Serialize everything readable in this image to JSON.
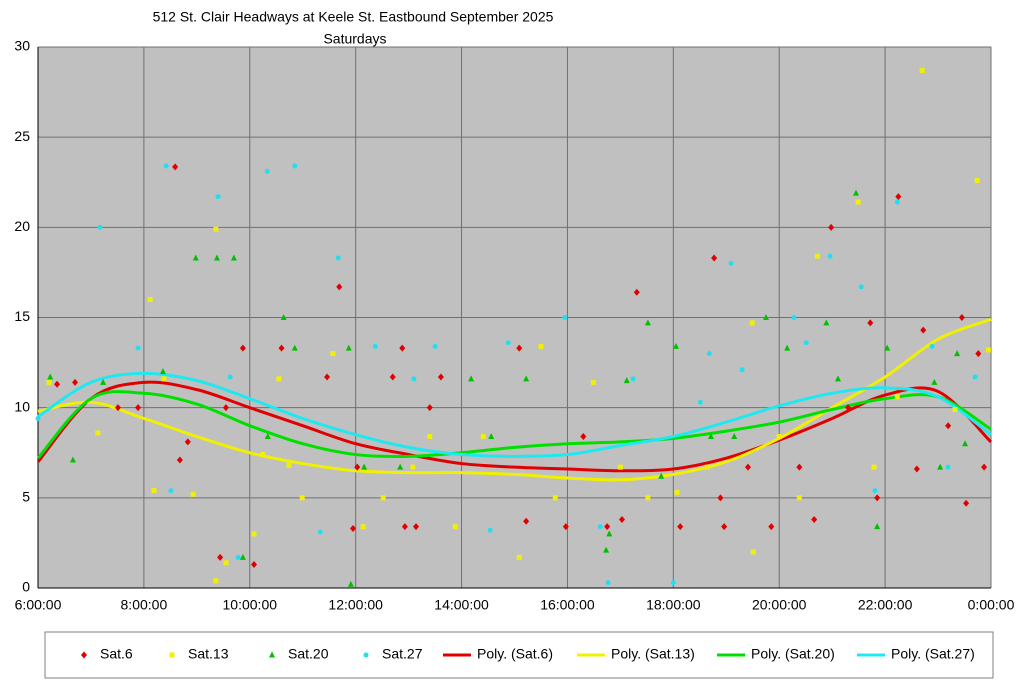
{
  "chart_data": {
    "type": "scatter",
    "title": "512 St. Clair Headways at Keele St. Eastbound September 2025",
    "subtitle": "Saturdays",
    "xlim": [
      6,
      24
    ],
    "xticks": [
      {
        "value": 6,
        "label": "6:00:00"
      },
      {
        "value": 8,
        "label": "8:00:00"
      },
      {
        "value": 10,
        "label": "10:00:00"
      },
      {
        "value": 12,
        "label": "12:00:00"
      },
      {
        "value": 14,
        "label": "14:00:00"
      },
      {
        "value": 16,
        "label": "16:00:00"
      },
      {
        "value": 18,
        "label": "18:00:00"
      },
      {
        "value": 20,
        "label": "20:00:00"
      },
      {
        "value": 22,
        "label": "22:00:00"
      },
      {
        "value": 24,
        "label": "0:00:00"
      }
    ],
    "ylim": [
      0,
      30
    ],
    "yticks": [
      0,
      5,
      10,
      15,
      20,
      25,
      30
    ],
    "grid": true,
    "legend_position": "bottom",
    "series": [
      {
        "name": "Sat.6",
        "color": "#e00000",
        "mode": "markers",
        "marker": "diamond",
        "x": [
          8.59,
          11.69,
          17.31,
          18.77,
          20.98,
          22.25,
          23.45,
          9.87,
          10.6,
          12.88,
          15.09,
          6.36,
          6.7,
          7.51,
          7.89,
          8.68,
          8.83,
          9.55,
          10.08,
          9.44,
          11.46,
          12.03,
          11.95,
          12.7,
          12.93,
          13.14,
          13.4,
          13.61,
          15.22,
          15.97,
          16.3,
          16.75,
          17.03,
          18.13,
          18.89,
          18.96,
          19.41,
          19.85,
          20.38,
          20.66,
          21.3,
          21.72,
          21.85,
          22.6,
          22.72,
          23.19,
          23.53,
          23.76,
          23.87
        ],
        "values": [
          23.35,
          16.7,
          16.4,
          18.3,
          20.0,
          21.7,
          15.0,
          13.3,
          13.3,
          13.3,
          13.3,
          11.3,
          11.4,
          10.0,
          10.0,
          7.1,
          8.1,
          10.0,
          1.3,
          1.7,
          11.7,
          6.7,
          3.3,
          11.7,
          3.4,
          3.4,
          10.0,
          11.7,
          3.7,
          3.4,
          8.4,
          3.4,
          3.8,
          3.4,
          5.0,
          3.4,
          6.7,
          3.4,
          6.7,
          3.8,
          10.0,
          14.7,
          5.0,
          6.6,
          14.3,
          9.0,
          4.7,
          13.0,
          6.7
        ]
      },
      {
        "name": "Sat.13",
        "color": "#f0f000",
        "mode": "markers",
        "marker": "square",
        "x": [
          6.21,
          7.13,
          8.12,
          8.19,
          8.38,
          8.93,
          9.36,
          9.36,
          9.55,
          10.08,
          10.25,
          10.55,
          10.74,
          10.99,
          11.57,
          12.14,
          12.52,
          13.08,
          13.4,
          13.88,
          14.41,
          15.09,
          15.5,
          15.77,
          16.49,
          17.0,
          17.52,
          18.07,
          18.64,
          19.51,
          19.49,
          20.0,
          20.38,
          20.72,
          21.49,
          21.79,
          22.23,
          22.7,
          23.74,
          23.95,
          23.32
        ],
        "values": [
          11.4,
          8.6,
          16.0,
          5.4,
          11.6,
          5.2,
          19.9,
          0.4,
          1.4,
          3.0,
          7.4,
          11.6,
          6.8,
          5.0,
          13.0,
          3.4,
          5.0,
          6.7,
          8.4,
          3.4,
          8.4,
          1.7,
          13.4,
          5.0,
          11.4,
          6.7,
          5.0,
          5.3,
          6.7,
          2.0,
          14.7,
          8.4,
          5.0,
          18.4,
          21.4,
          6.7,
          10.6,
          28.7,
          22.6,
          13.2,
          9.9
        ]
      },
      {
        "name": "Sat.20",
        "color": "#00c000",
        "mode": "markers",
        "marker": "triangle",
        "x": [
          6.23,
          6.66,
          7.23,
          8.36,
          8.98,
          9.38,
          9.7,
          9.87,
          10.34,
          10.64,
          10.85,
          11.87,
          11.91,
          12.16,
          12.84,
          14.18,
          14.56,
          15.22,
          16.73,
          16.79,
          17.12,
          17.52,
          17.77,
          18.05,
          18.71,
          19.15,
          19.75,
          20.15,
          20.89,
          21.11,
          21.45,
          21.85,
          22.04,
          22.93,
          23.04,
          23.36,
          23.51
        ],
        "values": [
          11.7,
          7.1,
          11.4,
          12.0,
          18.3,
          18.3,
          18.3,
          1.7,
          8.4,
          15.0,
          13.3,
          13.3,
          0.2,
          6.7,
          6.7,
          11.6,
          8.4,
          11.6,
          2.1,
          3.0,
          11.5,
          14.7,
          6.2,
          13.4,
          8.4,
          8.4,
          15.0,
          13.3,
          14.7,
          11.6,
          21.9,
          3.4,
          13.3,
          11.4,
          6.7,
          13.0,
          8.0
        ]
      },
      {
        "name": "Sat.27",
        "color": "#20e0f0",
        "mode": "markers",
        "marker": "circle",
        "x": [
          6.0,
          7.17,
          7.89,
          8.42,
          8.51,
          9.4,
          9.63,
          9.78,
          10.33,
          10.85,
          11.33,
          11.67,
          12.37,
          13.1,
          13.5,
          14.54,
          14.88,
          15.95,
          16.62,
          16.77,
          17.24,
          18.0,
          18.51,
          18.68,
          19.09,
          19.3,
          20.28,
          20.51,
          20.96,
          21.55,
          22.23,
          21.81,
          22.89,
          23.19,
          23.7
        ],
        "values": [
          9.4,
          20.0,
          13.3,
          23.4,
          5.4,
          21.7,
          11.7,
          1.7,
          23.1,
          23.4,
          3.1,
          18.3,
          13.4,
          11.6,
          13.4,
          3.2,
          13.6,
          15.0,
          3.4,
          0.3,
          11.6,
          0.3,
          10.3,
          13.0,
          18.0,
          12.1,
          15.0,
          13.6,
          18.4,
          16.7,
          21.4,
          5.4,
          13.4,
          6.7,
          11.7
        ]
      },
      {
        "name": "Poly. (Sat.6)",
        "color": "#e00000",
        "mode": "line",
        "x": [
          6,
          7,
          8,
          9,
          10,
          11,
          12,
          13,
          14,
          15,
          16,
          17,
          18,
          19,
          20,
          21,
          22,
          23,
          24
        ],
        "values": [
          7.0,
          10.5,
          11.4,
          11.0,
          10.0,
          9.0,
          8.0,
          7.4,
          6.9,
          6.7,
          6.6,
          6.5,
          6.6,
          7.2,
          8.2,
          9.4,
          10.7,
          10.9,
          8.1
        ]
      },
      {
        "name": "Poly. (Sat.13)",
        "color": "#f0f000",
        "mode": "line",
        "x": [
          6,
          7,
          8,
          9,
          10,
          11,
          12,
          13,
          14,
          15,
          16,
          17,
          18,
          19,
          20,
          21,
          22,
          23,
          24
        ],
        "values": [
          9.8,
          10.3,
          9.4,
          8.4,
          7.5,
          6.9,
          6.5,
          6.4,
          6.4,
          6.3,
          6.1,
          6.0,
          6.3,
          7.0,
          8.3,
          10.0,
          11.7,
          13.8,
          14.9
        ]
      },
      {
        "name": "Poly. (Sat.20)",
        "color": "#00e000",
        "mode": "line",
        "x": [
          6,
          7,
          8,
          9,
          10,
          11,
          12,
          13,
          14,
          15,
          16,
          17,
          18,
          19,
          20,
          21,
          22,
          23,
          24
        ],
        "values": [
          7.2,
          10.5,
          10.8,
          10.2,
          9.0,
          8.0,
          7.4,
          7.3,
          7.5,
          7.8,
          8.0,
          8.1,
          8.3,
          8.7,
          9.2,
          9.9,
          10.5,
          10.6,
          8.8
        ]
      },
      {
        "name": "Poly. (Sat.27)",
        "color": "#20e8f0",
        "mode": "line",
        "x": [
          6,
          7,
          8,
          9,
          10,
          11,
          12,
          13,
          14,
          15,
          16,
          17,
          18,
          19,
          20,
          21,
          22,
          23,
          24
        ],
        "values": [
          9.5,
          11.4,
          11.9,
          11.5,
          10.5,
          9.4,
          8.5,
          7.8,
          7.4,
          7.3,
          7.4,
          7.9,
          8.4,
          9.2,
          10.1,
          10.8,
          11.1,
          10.6,
          8.5
        ]
      }
    ]
  }
}
